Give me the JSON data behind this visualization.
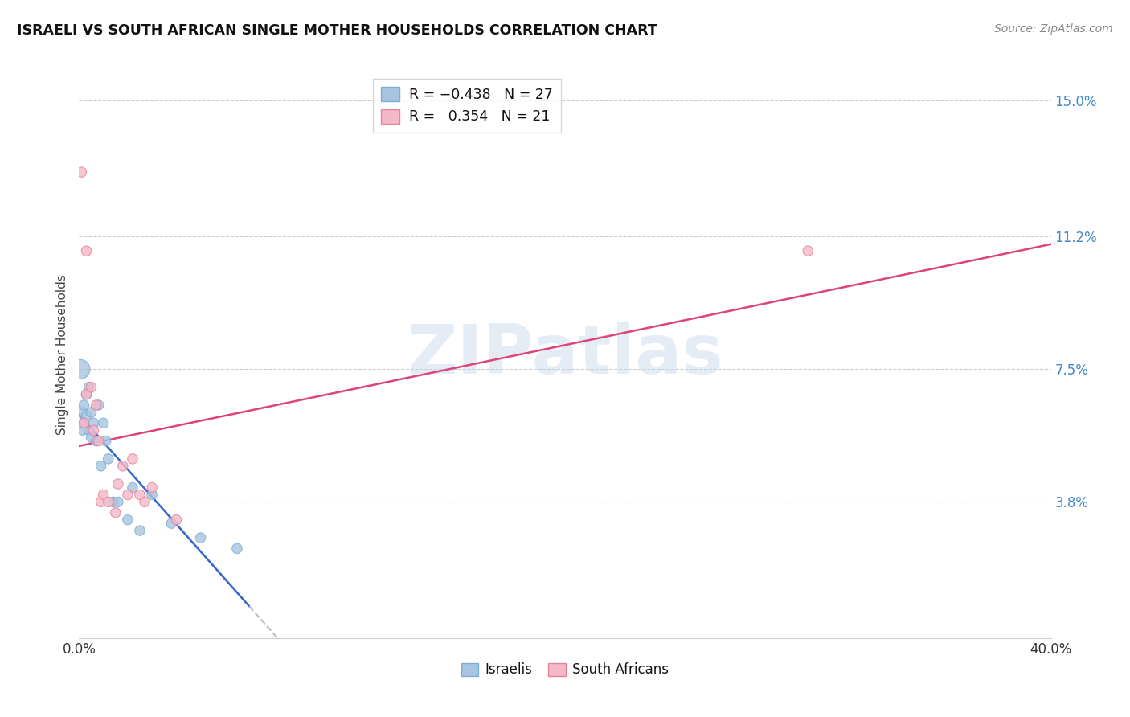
{
  "title": "ISRAELI VS SOUTH AFRICAN SINGLE MOTHER HOUSEHOLDS CORRELATION CHART",
  "source": "Source: ZipAtlas.com",
  "ylabel": "Single Mother Households",
  "xlim": [
    0.0,
    0.4
  ],
  "ylim": [
    0.0,
    0.158
  ],
  "ytick_values": [
    0.038,
    0.075,
    0.112,
    0.15
  ],
  "ytick_labels": [
    "3.8%",
    "7.5%",
    "11.2%",
    "15.0%"
  ],
  "xtick_values": [
    0.0,
    0.4
  ],
  "xtick_labels": [
    "0.0%",
    "40.0%"
  ],
  "watermark": "ZIPatlas",
  "isr_color_fill": "#a8c4e0",
  "isr_color_edge": "#7aafd4",
  "sa_color_fill": "#f4b8c8",
  "sa_color_edge": "#e8829a",
  "line_isr_color": "#3366cc",
  "line_sa_color": "#dd4477",
  "line_dash_color": "#bbbbbb",
  "israelis_x": [
    0.0005,
    0.001,
    0.0015,
    0.002,
    0.002,
    0.003,
    0.003,
    0.004,
    0.004,
    0.005,
    0.005,
    0.006,
    0.007,
    0.008,
    0.009,
    0.01,
    0.011,
    0.012,
    0.014,
    0.016,
    0.02,
    0.022,
    0.025,
    0.03,
    0.038,
    0.05,
    0.065
  ],
  "israelis_y": [
    0.075,
    0.063,
    0.058,
    0.065,
    0.06,
    0.068,
    0.062,
    0.07,
    0.058,
    0.063,
    0.056,
    0.06,
    0.055,
    0.065,
    0.048,
    0.06,
    0.055,
    0.05,
    0.038,
    0.038,
    0.033,
    0.042,
    0.03,
    0.04,
    0.032,
    0.028,
    0.025
  ],
  "israelis_sizes": [
    300,
    100,
    80,
    80,
    80,
    80,
    80,
    80,
    80,
    80,
    80,
    80,
    80,
    80,
    80,
    80,
    80,
    80,
    80,
    80,
    80,
    80,
    80,
    80,
    80,
    80,
    80
  ],
  "sa_x": [
    0.001,
    0.002,
    0.003,
    0.005,
    0.006,
    0.007,
    0.008,
    0.009,
    0.01,
    0.012,
    0.015,
    0.016,
    0.018,
    0.02,
    0.022,
    0.025,
    0.027,
    0.03,
    0.04,
    0.3,
    0.003
  ],
  "sa_y": [
    0.13,
    0.06,
    0.068,
    0.07,
    0.058,
    0.065,
    0.055,
    0.038,
    0.04,
    0.038,
    0.035,
    0.043,
    0.048,
    0.04,
    0.05,
    0.04,
    0.038,
    0.042,
    0.033,
    0.108,
    0.108
  ],
  "sa_sizes": [
    80,
    80,
    80,
    80,
    80,
    80,
    80,
    80,
    80,
    80,
    80,
    80,
    80,
    80,
    80,
    80,
    80,
    80,
    80,
    80,
    80
  ],
  "isr_line_x_solid_end": 0.07,
  "isr_line_x_dash_end": 0.4
}
